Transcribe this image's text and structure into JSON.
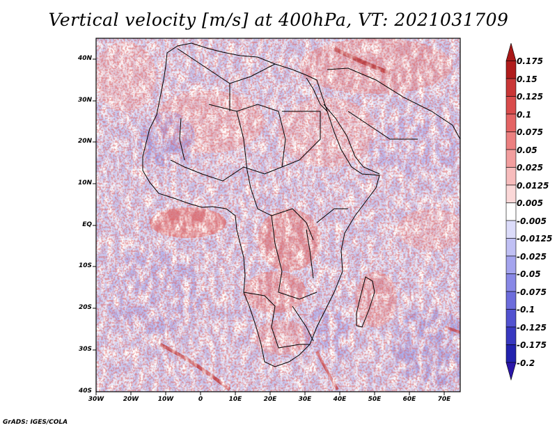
{
  "title": "Vertical velocity [m/s] at 400hPa, VT: 2021031709",
  "credit": "GrADS: IGES/COLA",
  "map": {
    "region": "Africa",
    "variable": "vertical velocity",
    "units": "m/s",
    "level": "400hPa",
    "valid_time": "2021031709",
    "lon_range": [
      -30,
      75
    ],
    "lat_range": [
      -40,
      45
    ],
    "lat_ticks": [
      "40N",
      "30N",
      "20N",
      "10N",
      "EQ",
      "10S",
      "20S",
      "30S",
      "40S"
    ],
    "lon_ticks": [
      "30W",
      "20W",
      "10W",
      "0",
      "10E",
      "20E",
      "30E",
      "40E",
      "50E",
      "60E",
      "70E"
    ]
  },
  "colorbar": {
    "labels": [
      "0.175",
      "0.15",
      "0.125",
      "0.1",
      "0.075",
      "0.05",
      "0.025",
      "0.0125",
      "0.005",
      "-0.005",
      "-0.0125",
      "-0.025",
      "-0.05",
      "-0.075",
      "-0.1",
      "-0.125",
      "-0.175",
      "-0.2"
    ],
    "colors": [
      "#b01c1c",
      "#c93636",
      "#d94c4c",
      "#e46464",
      "#ec8080",
      "#f29e9e",
      "#f7bcbc",
      "#fbd8d8",
      "#ffffff",
      "#dcdcfa",
      "#c0c0f4",
      "#a4a4ee",
      "#8888e6",
      "#6c6cdc",
      "#5252d0",
      "#3838c0",
      "#2222ae"
    ],
    "max_color": "#a81818",
    "min_color": "#2a16a8"
  }
}
